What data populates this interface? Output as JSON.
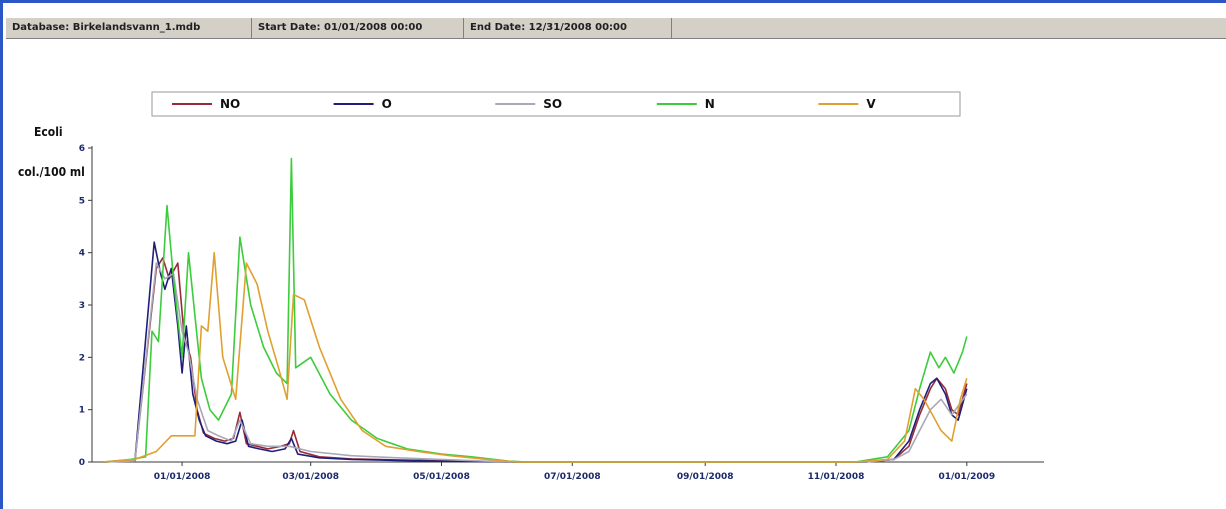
{
  "statusbar": {
    "database": "Database: Birkelandsvann_1.mdb",
    "start_date": "Start Date: 01/01/2008 00:00",
    "end_date": "End Date: 12/31/2008 00:00"
  },
  "colors": {
    "window_border": "#2a56c6",
    "statusbar_bg": "#d4d0c8"
  },
  "chart_data": {
    "type": "line",
    "title": "",
    "ylabel_line1": "Ecoli",
    "ylabel_line2": "col./100 ml",
    "xlabel": "",
    "ylim": [
      0,
      6
    ],
    "yticks": [
      0,
      1,
      2,
      3,
      4,
      5,
      6
    ],
    "x_axis_type": "date",
    "xlim": [
      "2007-11-20",
      "2009-02-06"
    ],
    "xticks": [
      {
        "date": "2008-01-01",
        "label": "01/01/2008"
      },
      {
        "date": "2008-03-01",
        "label": "03/01/2008"
      },
      {
        "date": "2008-05-01",
        "label": "05/01/2008"
      },
      {
        "date": "2008-07-01",
        "label": "07/01/2008"
      },
      {
        "date": "2008-09-01",
        "label": "09/01/2008"
      },
      {
        "date": "2008-11-01",
        "label": "11/01/2008"
      },
      {
        "date": "2009-01-01",
        "label": "01/01/2009"
      }
    ],
    "legend_position": "top",
    "grid": false,
    "series": [
      {
        "name": "NO",
        "color": "#9a2a3a",
        "points": [
          [
            "2007-11-25",
            0
          ],
          [
            "2007-12-10",
            0.02
          ],
          [
            "2007-12-20",
            3.7
          ],
          [
            "2007-12-23",
            3.9
          ],
          [
            "2007-12-26",
            3.5
          ],
          [
            "2007-12-30",
            3.8
          ],
          [
            "2008-01-02",
            2.4
          ],
          [
            "2008-01-05",
            2.0
          ],
          [
            "2008-01-08",
            1.0
          ],
          [
            "2008-01-11",
            0.55
          ],
          [
            "2008-01-16",
            0.45
          ],
          [
            "2008-01-21",
            0.4
          ],
          [
            "2008-01-25",
            0.45
          ],
          [
            "2008-01-28",
            0.95
          ],
          [
            "2008-01-31",
            0.35
          ],
          [
            "2008-02-05",
            0.3
          ],
          [
            "2008-02-10",
            0.25
          ],
          [
            "2008-02-16",
            0.3
          ],
          [
            "2008-02-20",
            0.35
          ],
          [
            "2008-02-22",
            0.6
          ],
          [
            "2008-02-25",
            0.2
          ],
          [
            "2008-03-05",
            0.1
          ],
          [
            "2008-03-20",
            0.06
          ],
          [
            "2008-04-10",
            0.04
          ],
          [
            "2008-05-10",
            0.02
          ],
          [
            "2008-06-01",
            0
          ],
          [
            "2008-11-15",
            0
          ],
          [
            "2008-11-28",
            0.05
          ],
          [
            "2008-12-05",
            0.3
          ],
          [
            "2008-12-10",
            0.9
          ],
          [
            "2008-12-15",
            1.4
          ],
          [
            "2008-12-18",
            1.6
          ],
          [
            "2008-12-22",
            1.4
          ],
          [
            "2008-12-25",
            1.0
          ],
          [
            "2008-12-28",
            0.9
          ],
          [
            "2009-01-01",
            1.5
          ]
        ]
      },
      {
        "name": "O",
        "color": "#1f1f7a",
        "points": [
          [
            "2007-11-25",
            0
          ],
          [
            "2007-12-10",
            0.02
          ],
          [
            "2007-12-19",
            4.2
          ],
          [
            "2007-12-22",
            3.6
          ],
          [
            "2007-12-24",
            3.3
          ],
          [
            "2007-12-27",
            3.7
          ],
          [
            "2007-12-30",
            2.6
          ],
          [
            "2008-01-01",
            1.7
          ],
          [
            "2008-01-03",
            2.6
          ],
          [
            "2008-01-06",
            1.3
          ],
          [
            "2008-01-09",
            0.8
          ],
          [
            "2008-01-12",
            0.5
          ],
          [
            "2008-01-17",
            0.4
          ],
          [
            "2008-01-22",
            0.35
          ],
          [
            "2008-01-26",
            0.4
          ],
          [
            "2008-01-29",
            0.8
          ],
          [
            "2008-02-01",
            0.3
          ],
          [
            "2008-02-06",
            0.25
          ],
          [
            "2008-02-12",
            0.2
          ],
          [
            "2008-02-18",
            0.25
          ],
          [
            "2008-02-21",
            0.45
          ],
          [
            "2008-02-24",
            0.15
          ],
          [
            "2008-03-05",
            0.08
          ],
          [
            "2008-03-20",
            0.05
          ],
          [
            "2008-04-10",
            0.03
          ],
          [
            "2008-05-10",
            0.01
          ],
          [
            "2008-06-01",
            0
          ],
          [
            "2008-11-15",
            0
          ],
          [
            "2008-11-28",
            0.05
          ],
          [
            "2008-12-05",
            0.4
          ],
          [
            "2008-12-10",
            1.0
          ],
          [
            "2008-12-15",
            1.5
          ],
          [
            "2008-12-18",
            1.6
          ],
          [
            "2008-12-22",
            1.3
          ],
          [
            "2008-12-25",
            0.9
          ],
          [
            "2008-12-28",
            0.8
          ],
          [
            "2009-01-01",
            1.4
          ]
        ]
      },
      {
        "name": "SO",
        "color": "#a8a8b8",
        "points": [
          [
            "2007-11-25",
            0
          ],
          [
            "2007-12-10",
            0.02
          ],
          [
            "2007-12-20",
            3.8
          ],
          [
            "2007-12-24",
            3.5
          ],
          [
            "2007-12-28",
            3.6
          ],
          [
            "2008-01-01",
            2.5
          ],
          [
            "2008-01-04",
            2.1
          ],
          [
            "2008-01-08",
            1.2
          ],
          [
            "2008-01-13",
            0.6
          ],
          [
            "2008-01-18",
            0.5
          ],
          [
            "2008-01-24",
            0.4
          ],
          [
            "2008-01-28",
            0.8
          ],
          [
            "2008-02-02",
            0.35
          ],
          [
            "2008-02-10",
            0.3
          ],
          [
            "2008-02-20",
            0.3
          ],
          [
            "2008-03-01",
            0.2
          ],
          [
            "2008-03-20",
            0.12
          ],
          [
            "2008-04-10",
            0.08
          ],
          [
            "2008-05-01",
            0.05
          ],
          [
            "2008-06-01",
            0
          ],
          [
            "2008-11-15",
            0
          ],
          [
            "2008-11-28",
            0.05
          ],
          [
            "2008-12-05",
            0.2
          ],
          [
            "2008-12-10",
            0.6
          ],
          [
            "2008-12-15",
            1.0
          ],
          [
            "2008-12-20",
            1.2
          ],
          [
            "2008-12-25",
            0.9
          ],
          [
            "2009-01-01",
            1.3
          ]
        ]
      },
      {
        "name": "N",
        "color": "#3ccc3c",
        "points": [
          [
            "2007-11-25",
            0
          ],
          [
            "2007-12-08",
            0.05
          ],
          [
            "2007-12-15",
            0.1
          ],
          [
            "2007-12-18",
            2.5
          ],
          [
            "2007-12-21",
            2.3
          ],
          [
            "2007-12-25",
            4.9
          ],
          [
            "2007-12-28",
            3.5
          ],
          [
            "2008-01-01",
            2.0
          ],
          [
            "2008-01-04",
            4.0
          ],
          [
            "2008-01-07",
            2.8
          ],
          [
            "2008-01-10",
            1.6
          ],
          [
            "2008-01-14",
            1.0
          ],
          [
            "2008-01-18",
            0.8
          ],
          [
            "2008-01-24",
            1.3
          ],
          [
            "2008-01-28",
            4.3
          ],
          [
            "2008-02-02",
            3.0
          ],
          [
            "2008-02-08",
            2.2
          ],
          [
            "2008-02-14",
            1.7
          ],
          [
            "2008-02-19",
            1.5
          ],
          [
            "2008-02-21",
            5.8
          ],
          [
            "2008-02-23",
            1.8
          ],
          [
            "2008-03-01",
            2.0
          ],
          [
            "2008-03-10",
            1.3
          ],
          [
            "2008-03-20",
            0.8
          ],
          [
            "2008-04-01",
            0.45
          ],
          [
            "2008-04-15",
            0.25
          ],
          [
            "2008-05-01",
            0.15
          ],
          [
            "2008-05-15",
            0.1
          ],
          [
            "2008-06-01",
            0.02
          ],
          [
            "2008-06-10",
            0
          ],
          [
            "2008-11-10",
            0
          ],
          [
            "2008-11-25",
            0.1
          ],
          [
            "2008-12-05",
            0.6
          ],
          [
            "2008-12-10",
            1.4
          ],
          [
            "2008-12-15",
            2.1
          ],
          [
            "2008-12-19",
            1.8
          ],
          [
            "2008-12-22",
            2.0
          ],
          [
            "2008-12-26",
            1.7
          ],
          [
            "2008-12-30",
            2.1
          ],
          [
            "2009-01-01",
            2.4
          ]
        ]
      },
      {
        "name": "V",
        "color": "#e0a030",
        "points": [
          [
            "2007-11-25",
            0
          ],
          [
            "2007-12-10",
            0.05
          ],
          [
            "2007-12-20",
            0.2
          ],
          [
            "2007-12-27",
            0.5
          ],
          [
            "2008-01-03",
            0.5
          ],
          [
            "2008-01-07",
            0.5
          ],
          [
            "2008-01-10",
            2.6
          ],
          [
            "2008-01-13",
            2.5
          ],
          [
            "2008-01-16",
            4.0
          ],
          [
            "2008-01-20",
            2.0
          ],
          [
            "2008-01-26",
            1.2
          ],
          [
            "2008-01-31",
            3.8
          ],
          [
            "2008-02-05",
            3.4
          ],
          [
            "2008-02-10",
            2.5
          ],
          [
            "2008-02-15",
            1.8
          ],
          [
            "2008-02-19",
            1.2
          ],
          [
            "2008-02-22",
            3.2
          ],
          [
            "2008-02-27",
            3.1
          ],
          [
            "2008-03-05",
            2.2
          ],
          [
            "2008-03-15",
            1.2
          ],
          [
            "2008-03-25",
            0.6
          ],
          [
            "2008-04-05",
            0.3
          ],
          [
            "2008-04-20",
            0.2
          ],
          [
            "2008-05-05",
            0.12
          ],
          [
            "2008-05-20",
            0.06
          ],
          [
            "2008-06-05",
            0
          ],
          [
            "2008-11-10",
            0
          ],
          [
            "2008-11-25",
            0.05
          ],
          [
            "2008-12-03",
            0.4
          ],
          [
            "2008-12-08",
            1.4
          ],
          [
            "2008-12-12",
            1.2
          ],
          [
            "2008-12-16",
            0.9
          ],
          [
            "2008-12-20",
            0.6
          ],
          [
            "2008-12-25",
            0.4
          ],
          [
            "2008-12-29",
            1.2
          ],
          [
            "2009-01-01",
            1.6
          ]
        ]
      }
    ]
  }
}
